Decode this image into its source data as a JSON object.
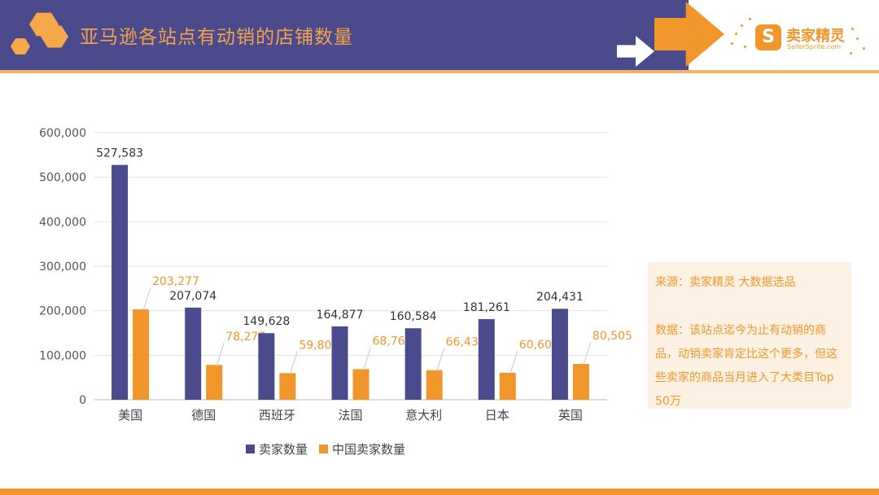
{
  "header": {
    "title": "亚马逊各站点有动销的店铺数量",
    "logo_badge": "S",
    "logo_name": "卖家精灵",
    "logo_url": "SellerSprite.com"
  },
  "note": {
    "source": "来源：卖家精灵 大数据选品",
    "data_text": "数据：该站点迄今为止有动销的商品，动销卖家肯定比这个更多，但这些卖家的商品当月进入了大类目Top 50万"
  },
  "colors": {
    "header_bg": "#4a4a8c",
    "accent_orange": "#f0962a",
    "series_sellers": "#4a4a8c",
    "series_china": "#f0962a"
  },
  "chart_data": {
    "type": "bar",
    "title": "",
    "xlabel": "",
    "ylabel": "",
    "categories": [
      "美国",
      "德国",
      "西班牙",
      "法国",
      "意大利",
      "日本",
      "英国"
    ],
    "series": [
      {
        "name": "卖家数量",
        "values": [
          527583,
          207074,
          149628,
          164877,
          160584,
          181261,
          204431
        ],
        "labels": [
          "527,583",
          "207,074",
          "149,628",
          "164,877",
          "160,584",
          "181,261",
          "204,431"
        ]
      },
      {
        "name": "中国卖家数量",
        "values": [
          203277,
          78277,
          59805,
          68766,
          66432,
          60605,
          80505
        ],
        "labels": [
          "203,277",
          "78,277",
          "59,805",
          "68,766",
          "66,432",
          "60,605",
          "80,505"
        ]
      }
    ],
    "ylim": [
      0,
      600000
    ],
    "yticks": [
      0,
      100000,
      200000,
      300000,
      400000,
      500000,
      600000
    ],
    "ytick_labels": [
      "0",
      "100,000",
      "200,000",
      "300,000",
      "400,000",
      "500,000",
      "600,000"
    ],
    "grid": true,
    "legend": "bottom"
  }
}
